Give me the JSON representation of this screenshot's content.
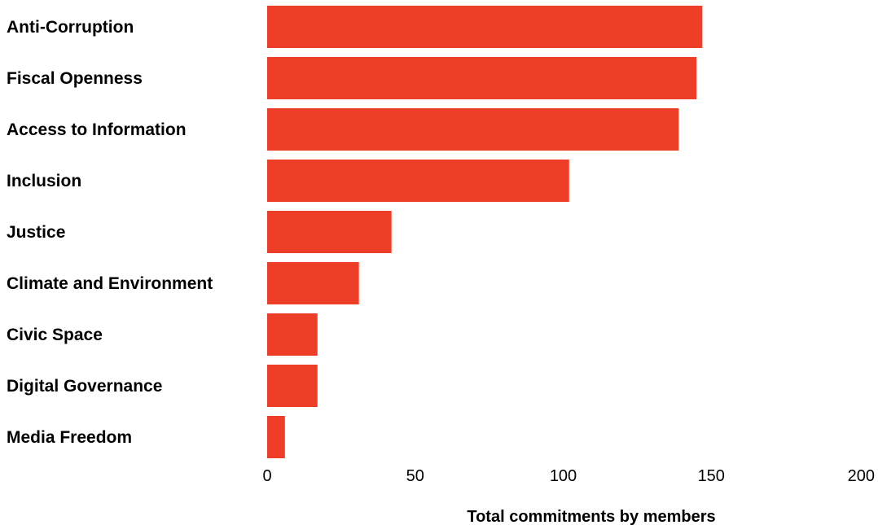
{
  "chart_data": {
    "type": "bar",
    "orientation": "horizontal",
    "categories": [
      "Anti-Corruption",
      "Fiscal Openness",
      "Access to Information",
      "Inclusion",
      "Justice",
      "Climate and Environment",
      "Civic Space",
      "Digital Governance",
      "Media Freedom"
    ],
    "values": [
      147,
      145,
      139,
      102,
      42,
      31,
      17,
      17,
      6
    ],
    "xlabel": "Total commitments by members",
    "ylabel": "",
    "xlim": [
      0,
      200
    ],
    "x_ticks": [
      "0",
      "50",
      "100",
      "150",
      "200"
    ],
    "grid": false,
    "legend": "none",
    "bar_color": "#ee3e27"
  }
}
